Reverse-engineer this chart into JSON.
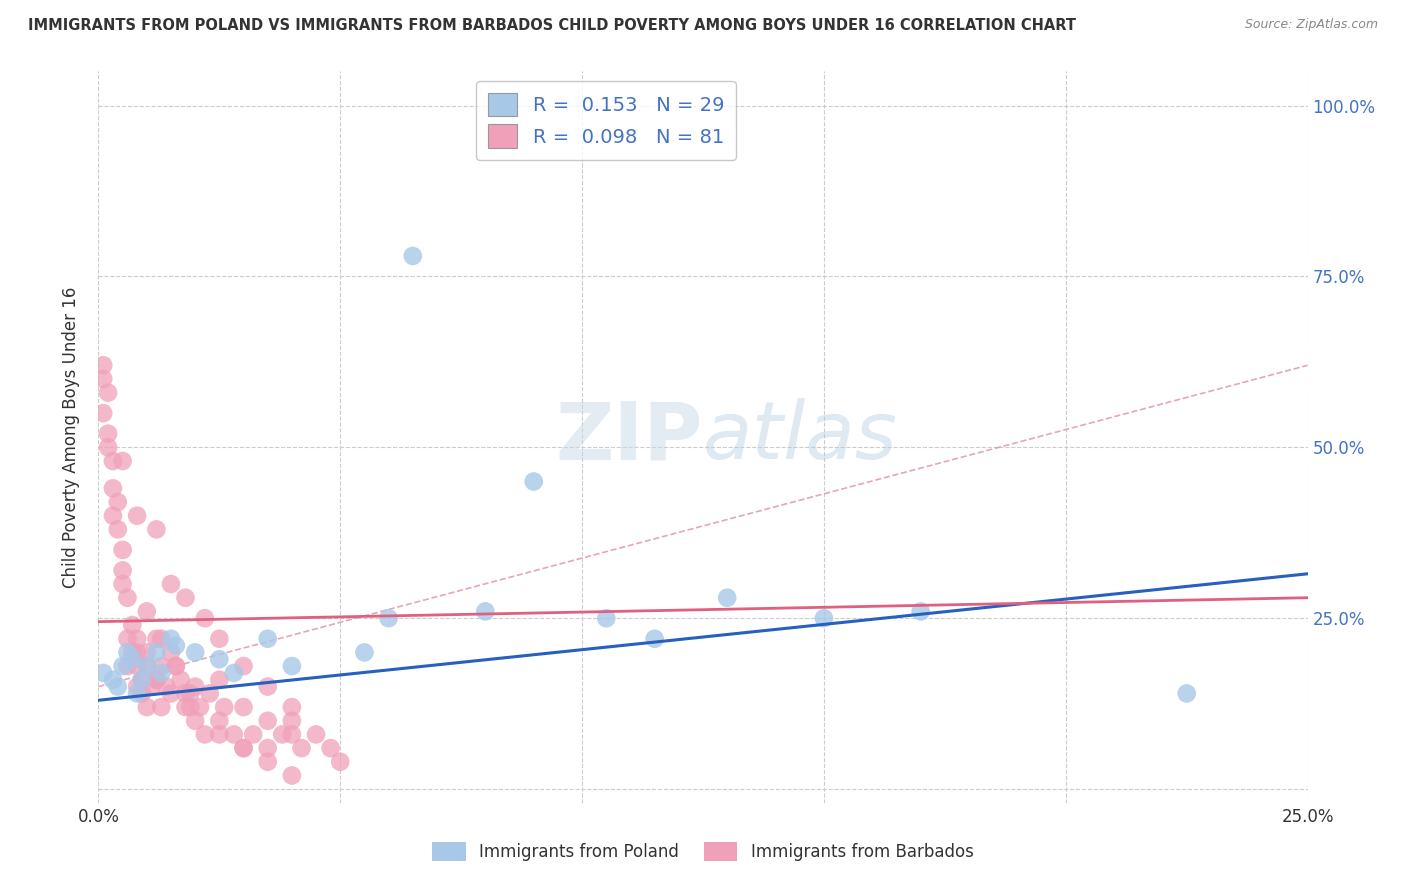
{
  "title": "IMMIGRANTS FROM POLAND VS IMMIGRANTS FROM BARBADOS CHILD POVERTY AMONG BOYS UNDER 16 CORRELATION CHART",
  "source": "Source: ZipAtlas.com",
  "ylabel": "Child Poverty Among Boys Under 16",
  "xlim": [
    0.0,
    0.25
  ],
  "ylim": [
    -0.02,
    1.05
  ],
  "poland_color": "#a8c8e8",
  "barbados_color": "#f0a0b8",
  "poland_line_color": "#2860c0",
  "barbados_line_color": "#e06080",
  "dashed_line_color": "#e090a0",
  "poland_R": 0.153,
  "poland_N": 29,
  "barbados_R": 0.098,
  "barbados_N": 81,
  "background_color": "#ffffff",
  "grid_color": "#cccccc",
  "right_tick_color": "#4472c4",
  "poland_x": [
    0.001,
    0.003,
    0.004,
    0.005,
    0.006,
    0.007,
    0.008,
    0.009,
    0.01,
    0.012,
    0.013,
    0.015,
    0.016,
    0.02,
    0.025,
    0.028,
    0.035,
    0.04,
    0.055,
    0.06,
    0.065,
    0.08,
    0.09,
    0.105,
    0.115,
    0.13,
    0.15,
    0.17,
    0.225
  ],
  "poland_y": [
    0.17,
    0.16,
    0.15,
    0.18,
    0.2,
    0.19,
    0.14,
    0.16,
    0.18,
    0.2,
    0.17,
    0.22,
    0.21,
    0.2,
    0.19,
    0.17,
    0.22,
    0.18,
    0.2,
    0.25,
    0.78,
    0.26,
    0.45,
    0.25,
    0.22,
    0.28,
    0.25,
    0.26,
    0.14
  ],
  "barbados_x": [
    0.001,
    0.001,
    0.001,
    0.002,
    0.002,
    0.002,
    0.003,
    0.003,
    0.003,
    0.004,
    0.004,
    0.005,
    0.005,
    0.005,
    0.006,
    0.006,
    0.006,
    0.007,
    0.007,
    0.008,
    0.008,
    0.008,
    0.009,
    0.009,
    0.01,
    0.01,
    0.01,
    0.011,
    0.012,
    0.012,
    0.013,
    0.013,
    0.014,
    0.015,
    0.015,
    0.016,
    0.017,
    0.018,
    0.019,
    0.02,
    0.02,
    0.021,
    0.022,
    0.023,
    0.025,
    0.026,
    0.028,
    0.03,
    0.032,
    0.035,
    0.038,
    0.04,
    0.042,
    0.045,
    0.048,
    0.05,
    0.012,
    0.015,
    0.018,
    0.022,
    0.025,
    0.03,
    0.035,
    0.04,
    0.01,
    0.013,
    0.016,
    0.019,
    0.025,
    0.03,
    0.035,
    0.04,
    0.008,
    0.012,
    0.018,
    0.025,
    0.03,
    0.035,
    0.04,
    0.005,
    0.008
  ],
  "barbados_y": [
    0.55,
    0.6,
    0.62,
    0.58,
    0.5,
    0.52,
    0.48,
    0.44,
    0.4,
    0.38,
    0.42,
    0.35,
    0.3,
    0.32,
    0.28,
    0.22,
    0.18,
    0.2,
    0.24,
    0.18,
    0.15,
    0.22,
    0.16,
    0.14,
    0.12,
    0.2,
    0.18,
    0.15,
    0.16,
    0.22,
    0.12,
    0.18,
    0.15,
    0.2,
    0.14,
    0.18,
    0.16,
    0.14,
    0.12,
    0.15,
    0.1,
    0.12,
    0.08,
    0.14,
    0.1,
    0.12,
    0.08,
    0.06,
    0.08,
    0.06,
    0.08,
    0.1,
    0.06,
    0.08,
    0.06,
    0.04,
    0.38,
    0.3,
    0.28,
    0.25,
    0.22,
    0.18,
    0.15,
    0.12,
    0.26,
    0.22,
    0.18,
    0.14,
    0.16,
    0.12,
    0.1,
    0.08,
    0.2,
    0.16,
    0.12,
    0.08,
    0.06,
    0.04,
    0.02,
    0.48,
    0.4
  ]
}
